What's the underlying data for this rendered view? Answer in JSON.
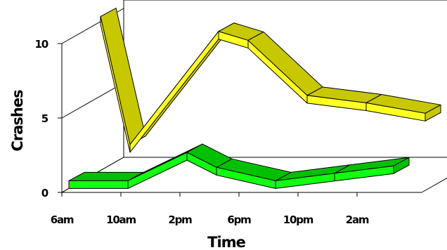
{
  "chart_data": {
    "type": "line",
    "style": "3d-ribbon",
    "xlabel": "Time",
    "ylabel": "Crashes",
    "x_tick_labels": [
      "6am",
      "10am",
      "2pm",
      "6pm",
      "10pm",
      "2am"
    ],
    "y_tick_labels": [
      "0",
      "5",
      "10"
    ],
    "ylim": [
      0,
      10
    ],
    "grid": false,
    "legend": "none",
    "series": [
      {
        "color": "#ffff22",
        "shade": "#c8c800",
        "x": [
          "6am",
          "8am",
          "2pm",
          "4pm",
          "8pm",
          "12am",
          "4am"
        ],
        "y": [
          10.4,
          1.8,
          9.4,
          8.8,
          5.1,
          4.6,
          3.9
        ]
      },
      {
        "color": "#11ff11",
        "shade": "#00c000",
        "x": [
          "6am",
          "10am",
          "2pm",
          "4pm",
          "8pm",
          "12am",
          "4am"
        ],
        "y": [
          0.5,
          0.5,
          2.4,
          1.4,
          0.5,
          1.0,
          1.5
        ]
      }
    ]
  }
}
